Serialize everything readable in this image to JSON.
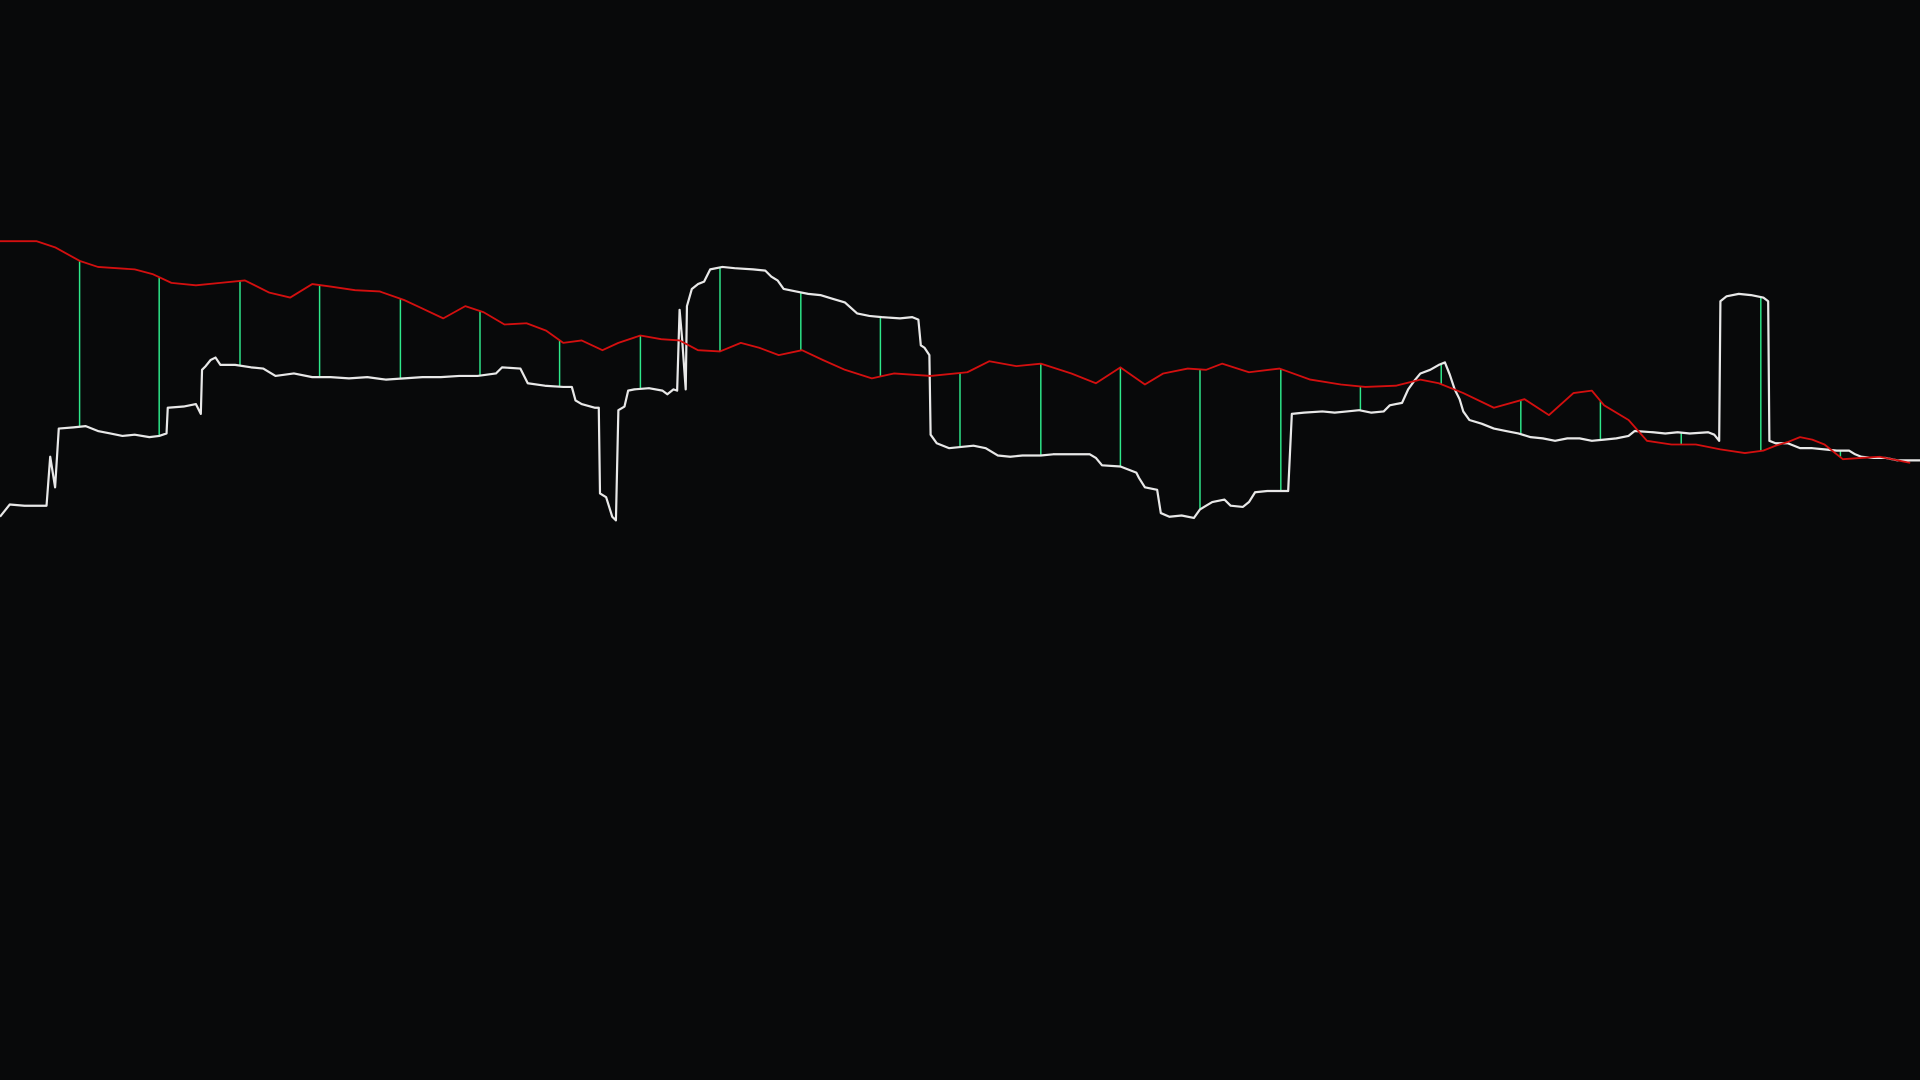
{
  "colors": {
    "background": "#08090a",
    "price_line": "#e8e8e8",
    "reference_line": "#d30f0f",
    "connector": "#2ee88a"
  },
  "chart_data": {
    "type": "line",
    "title": "",
    "xlabel": "",
    "ylabel": "",
    "grid": false,
    "legend": "none",
    "xlim": [
      0,
      1568
    ],
    "ylim": [
      0,
      882
    ],
    "series": [
      {
        "key": "price",
        "color": "#e8e8e8",
        "points": [
          [
            0,
            422
          ],
          [
            8,
            412
          ],
          [
            20,
            413
          ],
          [
            38,
            413
          ],
          [
            41,
            373
          ],
          [
            45,
            398
          ],
          [
            48,
            350
          ],
          [
            60,
            349
          ],
          [
            70,
            348
          ],
          [
            80,
            352
          ],
          [
            90,
            354
          ],
          [
            100,
            356
          ],
          [
            110,
            355
          ],
          [
            122,
            357
          ],
          [
            130,
            356
          ],
          [
            136,
            354
          ],
          [
            137,
            333
          ],
          [
            150,
            332
          ],
          [
            160,
            330
          ],
          [
            164,
            338
          ],
          [
            165,
            302
          ],
          [
            168,
            299
          ],
          [
            172,
            294
          ],
          [
            176,
            292
          ],
          [
            180,
            298
          ],
          [
            192,
            298
          ],
          [
            205,
            300
          ],
          [
            215,
            301
          ],
          [
            225,
            307
          ],
          [
            240,
            305
          ],
          [
            255,
            308
          ],
          [
            270,
            308
          ],
          [
            285,
            309
          ],
          [
            300,
            308
          ],
          [
            315,
            310
          ],
          [
            330,
            309
          ],
          [
            345,
            308
          ],
          [
            360,
            308
          ],
          [
            375,
            307
          ],
          [
            390,
            307
          ],
          [
            405,
            305
          ],
          [
            410,
            300
          ],
          [
            425,
            301
          ],
          [
            431,
            313
          ],
          [
            445,
            315
          ],
          [
            460,
            316
          ],
          [
            467,
            316
          ],
          [
            470,
            327
          ],
          [
            475,
            330
          ],
          [
            486,
            333
          ],
          [
            489,
            333
          ],
          [
            490,
            403
          ],
          [
            495,
            406
          ],
          [
            500,
            422
          ],
          [
            503,
            425
          ],
          [
            505,
            335
          ],
          [
            510,
            332
          ],
          [
            513,
            319
          ],
          [
            518,
            318
          ],
          [
            530,
            317
          ],
          [
            541,
            319
          ],
          [
            545,
            322
          ],
          [
            550,
            318
          ],
          [
            553,
            319
          ],
          [
            555,
            253
          ],
          [
            557,
            276
          ],
          [
            560,
            318
          ],
          [
            561,
            250
          ],
          [
            565,
            236
          ],
          [
            570,
            232
          ],
          [
            575,
            230
          ],
          [
            580,
            220
          ],
          [
            590,
            218
          ],
          [
            600,
            219
          ],
          [
            615,
            220
          ],
          [
            625,
            221
          ],
          [
            630,
            226
          ],
          [
            635,
            229
          ],
          [
            640,
            236
          ],
          [
            650,
            238
          ],
          [
            660,
            240
          ],
          [
            670,
            241
          ],
          [
            680,
            244
          ],
          [
            690,
            247
          ],
          [
            700,
            256
          ],
          [
            710,
            258
          ],
          [
            720,
            259
          ],
          [
            735,
            260
          ],
          [
            745,
            259
          ],
          [
            750,
            261
          ],
          [
            752,
            282
          ],
          [
            755,
            284
          ],
          [
            759,
            290
          ],
          [
            760,
            355
          ],
          [
            765,
            362
          ],
          [
            775,
            366
          ],
          [
            785,
            365
          ],
          [
            795,
            364
          ],
          [
            805,
            366
          ],
          [
            815,
            372
          ],
          [
            825,
            373
          ],
          [
            835,
            372
          ],
          [
            850,
            372
          ],
          [
            860,
            371
          ],
          [
            870,
            371
          ],
          [
            890,
            371
          ],
          [
            895,
            374
          ],
          [
            900,
            380
          ],
          [
            915,
            381
          ],
          [
            928,
            386
          ],
          [
            930,
            390
          ],
          [
            935,
            398
          ],
          [
            945,
            400
          ],
          [
            948,
            419
          ],
          [
            955,
            422
          ],
          [
            965,
            421
          ],
          [
            975,
            423
          ],
          [
            980,
            416
          ],
          [
            985,
            413
          ],
          [
            990,
            410
          ],
          [
            1000,
            408
          ],
          [
            1005,
            413
          ],
          [
            1015,
            414
          ],
          [
            1020,
            410
          ],
          [
            1025,
            402
          ],
          [
            1035,
            401
          ],
          [
            1045,
            401
          ],
          [
            1052,
            401
          ],
          [
            1055,
            338
          ],
          [
            1065,
            337
          ],
          [
            1080,
            336
          ],
          [
            1090,
            337
          ],
          [
            1100,
            336
          ],
          [
            1110,
            335
          ],
          [
            1120,
            337
          ],
          [
            1130,
            336
          ],
          [
            1135,
            331
          ],
          [
            1145,
            329
          ],
          [
            1150,
            318
          ],
          [
            1155,
            311
          ],
          [
            1160,
            305
          ],
          [
            1168,
            302
          ],
          [
            1175,
            298
          ],
          [
            1180,
            296
          ],
          [
            1184,
            306
          ],
          [
            1188,
            318
          ],
          [
            1192,
            326
          ],
          [
            1195,
            336
          ],
          [
            1200,
            343
          ],
          [
            1210,
            346
          ],
          [
            1220,
            350
          ],
          [
            1230,
            352
          ],
          [
            1240,
            354
          ],
          [
            1250,
            357
          ],
          [
            1260,
            358
          ],
          [
            1270,
            360
          ],
          [
            1280,
            358
          ],
          [
            1290,
            358
          ],
          [
            1300,
            360
          ],
          [
            1310,
            359
          ],
          [
            1320,
            358
          ],
          [
            1330,
            356
          ],
          [
            1335,
            352
          ],
          [
            1350,
            353
          ],
          [
            1360,
            354
          ],
          [
            1370,
            353
          ],
          [
            1380,
            354
          ],
          [
            1395,
            353
          ],
          [
            1400,
            355
          ],
          [
            1404,
            360
          ],
          [
            1405,
            246
          ],
          [
            1410,
            242
          ],
          [
            1420,
            240
          ],
          [
            1430,
            241
          ],
          [
            1440,
            243
          ],
          [
            1444,
            246
          ],
          [
            1445,
            360
          ],
          [
            1450,
            362
          ],
          [
            1460,
            362
          ],
          [
            1470,
            366
          ],
          [
            1480,
            366
          ],
          [
            1490,
            367
          ],
          [
            1500,
            368
          ],
          [
            1510,
            368
          ],
          [
            1515,
            371
          ],
          [
            1520,
            373
          ],
          [
            1530,
            374
          ],
          [
            1540,
            374
          ],
          [
            1550,
            376
          ],
          [
            1560,
            376
          ],
          [
            1568,
            376
          ]
        ]
      },
      {
        "key": "reference",
        "color": "#d30f0f",
        "points": [
          [
            0,
            197
          ],
          [
            30,
            197
          ],
          [
            45,
            202
          ],
          [
            65,
            213
          ],
          [
            80,
            218
          ],
          [
            110,
            220
          ],
          [
            125,
            224
          ],
          [
            140,
            231
          ],
          [
            160,
            233
          ],
          [
            180,
            231
          ],
          [
            200,
            229
          ],
          [
            220,
            239
          ],
          [
            237,
            243
          ],
          [
            255,
            232
          ],
          [
            270,
            234
          ],
          [
            290,
            237
          ],
          [
            310,
            238
          ],
          [
            330,
            245
          ],
          [
            345,
            252
          ],
          [
            362,
            260
          ],
          [
            380,
            250
          ],
          [
            395,
            255
          ],
          [
            412,
            265
          ],
          [
            430,
            264
          ],
          [
            446,
            270
          ],
          [
            460,
            280
          ],
          [
            475,
            278
          ],
          [
            492,
            286
          ],
          [
            505,
            280
          ],
          [
            523,
            274
          ],
          [
            540,
            277
          ],
          [
            555,
            278
          ],
          [
            570,
            286
          ],
          [
            588,
            287
          ],
          [
            605,
            280
          ],
          [
            620,
            284
          ],
          [
            636,
            290
          ],
          [
            655,
            286
          ],
          [
            672,
            294
          ],
          [
            690,
            302
          ],
          [
            712,
            309
          ],
          [
            730,
            305
          ],
          [
            760,
            307
          ],
          [
            790,
            304
          ],
          [
            808,
            295
          ],
          [
            830,
            299
          ],
          [
            850,
            297
          ],
          [
            875,
            305
          ],
          [
            895,
            313
          ],
          [
            915,
            300
          ],
          [
            935,
            314
          ],
          [
            950,
            305
          ],
          [
            970,
            301
          ],
          [
            985,
            302
          ],
          [
            998,
            297
          ],
          [
            1020,
            304
          ],
          [
            1045,
            301
          ],
          [
            1070,
            310
          ],
          [
            1095,
            314
          ],
          [
            1115,
            316
          ],
          [
            1140,
            315
          ],
          [
            1160,
            310
          ],
          [
            1175,
            313
          ],
          [
            1195,
            321
          ],
          [
            1220,
            333
          ],
          [
            1245,
            326
          ],
          [
            1265,
            339
          ],
          [
            1285,
            321
          ],
          [
            1300,
            319
          ],
          [
            1310,
            331
          ],
          [
            1330,
            343
          ],
          [
            1345,
            360
          ],
          [
            1365,
            363
          ],
          [
            1385,
            363
          ],
          [
            1405,
            367
          ],
          [
            1425,
            370
          ],
          [
            1440,
            368
          ],
          [
            1450,
            364
          ],
          [
            1460,
            361
          ],
          [
            1470,
            357
          ],
          [
            1480,
            359
          ],
          [
            1490,
            363
          ],
          [
            1505,
            375
          ],
          [
            1520,
            374
          ],
          [
            1535,
            373
          ],
          [
            1550,
            376
          ],
          [
            1560,
            378
          ]
        ]
      }
    ],
    "connectors_x": [
      65,
      130,
      196,
      261,
      327,
      392,
      457,
      523,
      588,
      654,
      719,
      784,
      850,
      915,
      980,
      1046,
      1111,
      1177,
      1242,
      1307,
      1373,
      1438,
      1503
    ]
  }
}
